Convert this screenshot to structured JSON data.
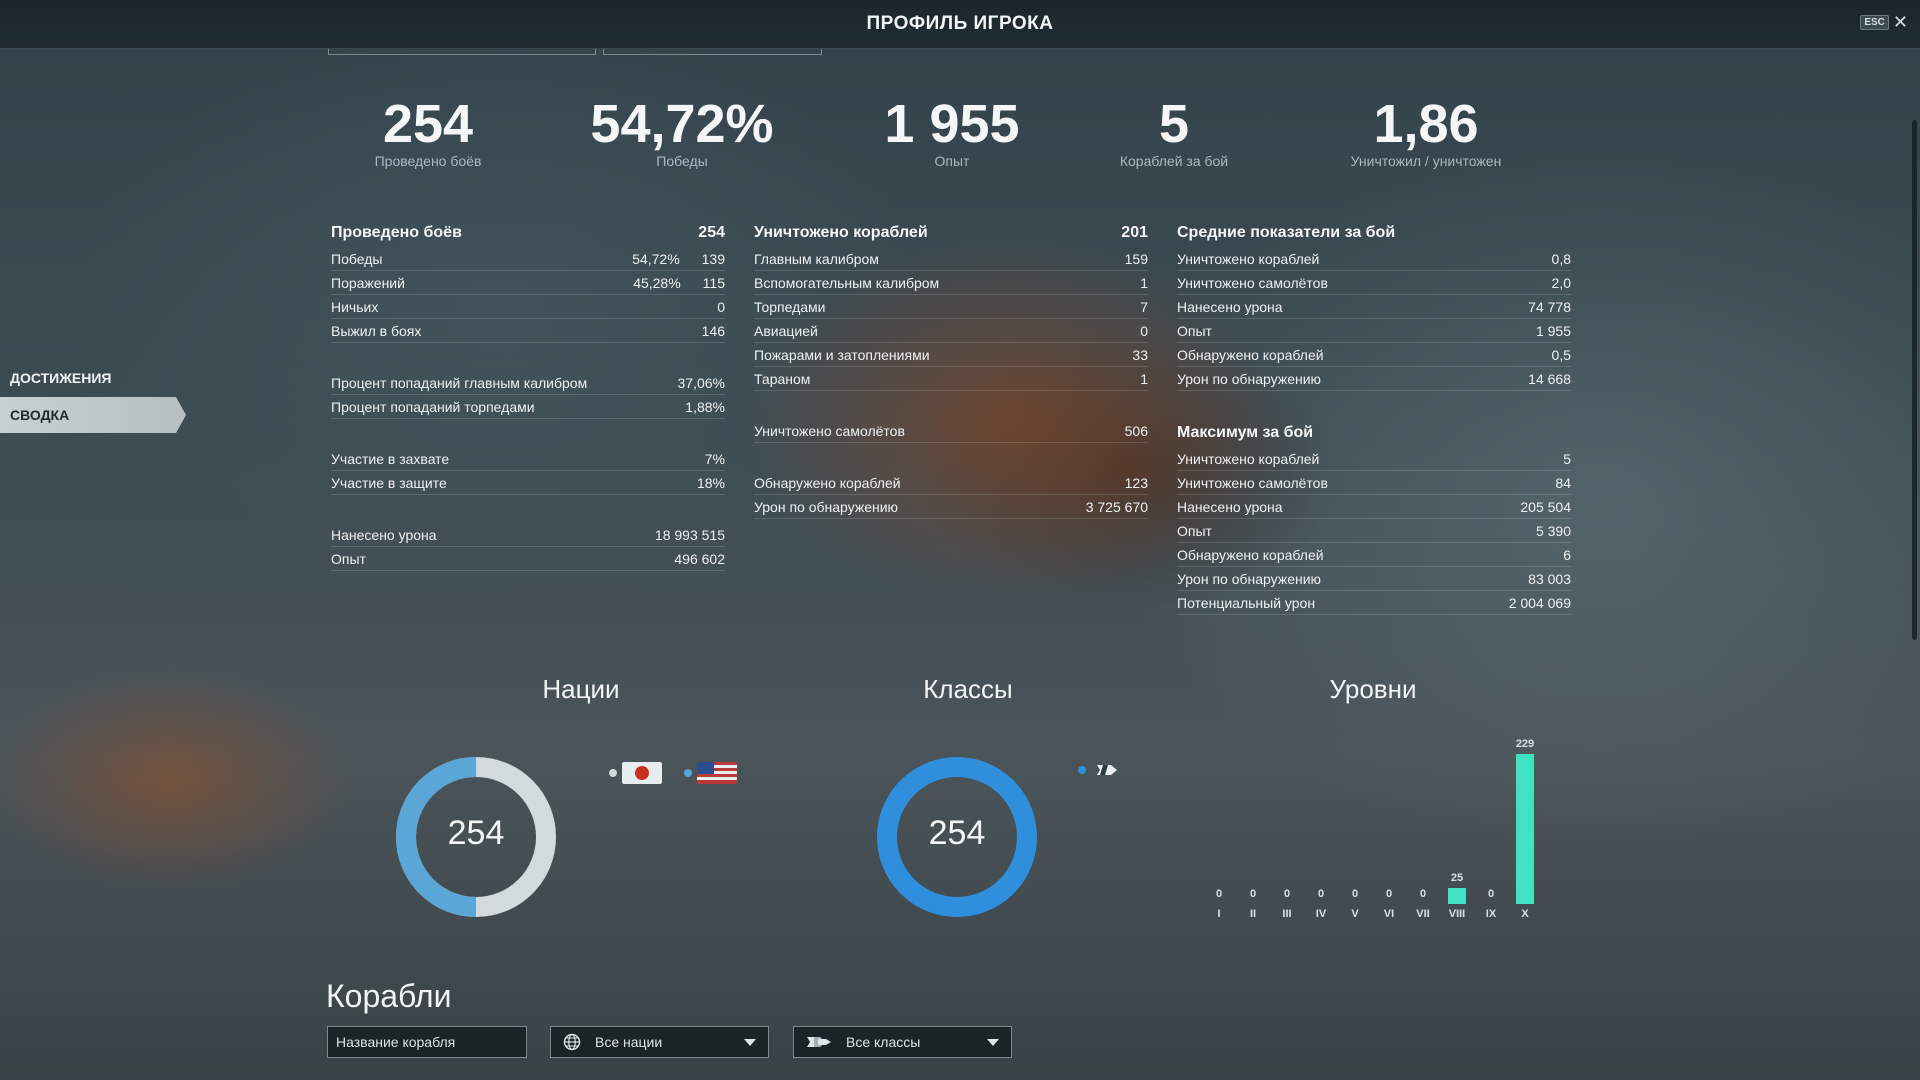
{
  "window": {
    "title": "ПРОФИЛЬ ИГРОКА",
    "esc_label": "ESC",
    "close_glyph": "✕"
  },
  "summary": [
    {
      "value": "254",
      "label": "Проведено боёв"
    },
    {
      "value": "54,72%",
      "label": "Победы"
    },
    {
      "value": "1 955",
      "label": "Опыт"
    },
    {
      "value": "5",
      "label": "Кораблей за бой"
    },
    {
      "value": "1,86",
      "label": "Уничтожил / уничтожен"
    }
  ],
  "nav": {
    "achievements": "ДОСТИЖЕНИЯ",
    "summary": "СВОДКА"
  },
  "battles": {
    "title": "Проведено боёв",
    "total": "254",
    "wins": {
      "label": "Победы",
      "pct": "54,72%",
      "count": "139"
    },
    "losses": {
      "label": "Поражений",
      "pct": "45,28%",
      "count": "115"
    },
    "draws": {
      "label": "Ничьих",
      "count": "0"
    },
    "survived": {
      "label": "Выжил в боях",
      "count": "146"
    },
    "main_hit": {
      "label": "Процент попаданий главным калибром",
      "value": "37,06%"
    },
    "torp_hit": {
      "label": "Процент попаданий торпедами",
      "value": "1,88%"
    },
    "capture": {
      "label": "Участие в захвате",
      "value": "7%"
    },
    "defense": {
      "label": "Участие в защите",
      "value": "18%"
    },
    "damage": {
      "label": "Нанесено урона",
      "value": "18 993 515"
    },
    "xp": {
      "label": "Опыт",
      "value": "496 602"
    }
  },
  "destroyed": {
    "title": "Уничтожено кораблей",
    "total": "201",
    "rows": [
      {
        "label": "Главным калибром",
        "value": "159"
      },
      {
        "label": "Вспомогательным калибром",
        "value": "1"
      },
      {
        "label": "Торпедами",
        "value": "7"
      },
      {
        "label": "Авиацией",
        "value": "0"
      },
      {
        "label": "Пожарами и затоплениями",
        "value": "33"
      },
      {
        "label": "Тараном",
        "value": "1"
      }
    ],
    "planes": {
      "label": "Уничтожено самолётов",
      "value": "506"
    },
    "spotted": {
      "label": "Обнаружено кораблей",
      "value": "123"
    },
    "spot_dmg": {
      "label": "Урон по обнаружению",
      "value": "3 725 670"
    }
  },
  "average": {
    "title": "Средние показатели за бой",
    "rows": [
      {
        "label": "Уничтожено кораблей",
        "value": "0,8"
      },
      {
        "label": "Уничтожено самолётов",
        "value": "2,0"
      },
      {
        "label": "Нанесено урона",
        "value": "74 778"
      },
      {
        "label": "Опыт",
        "value": "1 955"
      },
      {
        "label": "Обнаружено кораблей",
        "value": "0,5"
      },
      {
        "label": "Урон по обнаружению",
        "value": "14 668"
      }
    ]
  },
  "maximum": {
    "title": "Максимум за бой",
    "rows": [
      {
        "label": "Уничтожено кораблей",
        "value": "5"
      },
      {
        "label": "Уничтожено самолётов",
        "value": "84"
      },
      {
        "label": "Нанесено урона",
        "value": "205 504"
      },
      {
        "label": "Опыт",
        "value": "5 390"
      },
      {
        "label": "Обнаружено кораблей",
        "value": "6"
      },
      {
        "label": "Урон по обнаружению",
        "value": "83 003"
      },
      {
        "label": "Потенциальный урон",
        "value": "2 004 069"
      }
    ]
  },
  "nations": {
    "title": "Нации",
    "center": "254",
    "share_ring": 0.5,
    "colors": [
      "#d3dadd",
      "#5aa6d6"
    ],
    "flags": [
      "japan-flag-icon",
      "usa-flag-icon"
    ]
  },
  "classes": {
    "title": "Классы",
    "center": "254",
    "color": "#2f8fdd",
    "icon": "battleship-class-icon"
  },
  "tiers": {
    "title": "Уровни",
    "chart_data": {
      "type": "bar",
      "categories": [
        "I",
        "II",
        "III",
        "IV",
        "V",
        "VI",
        "VII",
        "VIII",
        "IX",
        "X"
      ],
      "values": [
        0,
        0,
        0,
        0,
        0,
        0,
        0,
        25,
        0,
        229
      ],
      "color": "#3fe3c3"
    }
  },
  "ships": {
    "title": "Корабли",
    "name_placeholder": "Название корабля",
    "nation_filter": "Все нации",
    "class_filter": "Все классы"
  }
}
